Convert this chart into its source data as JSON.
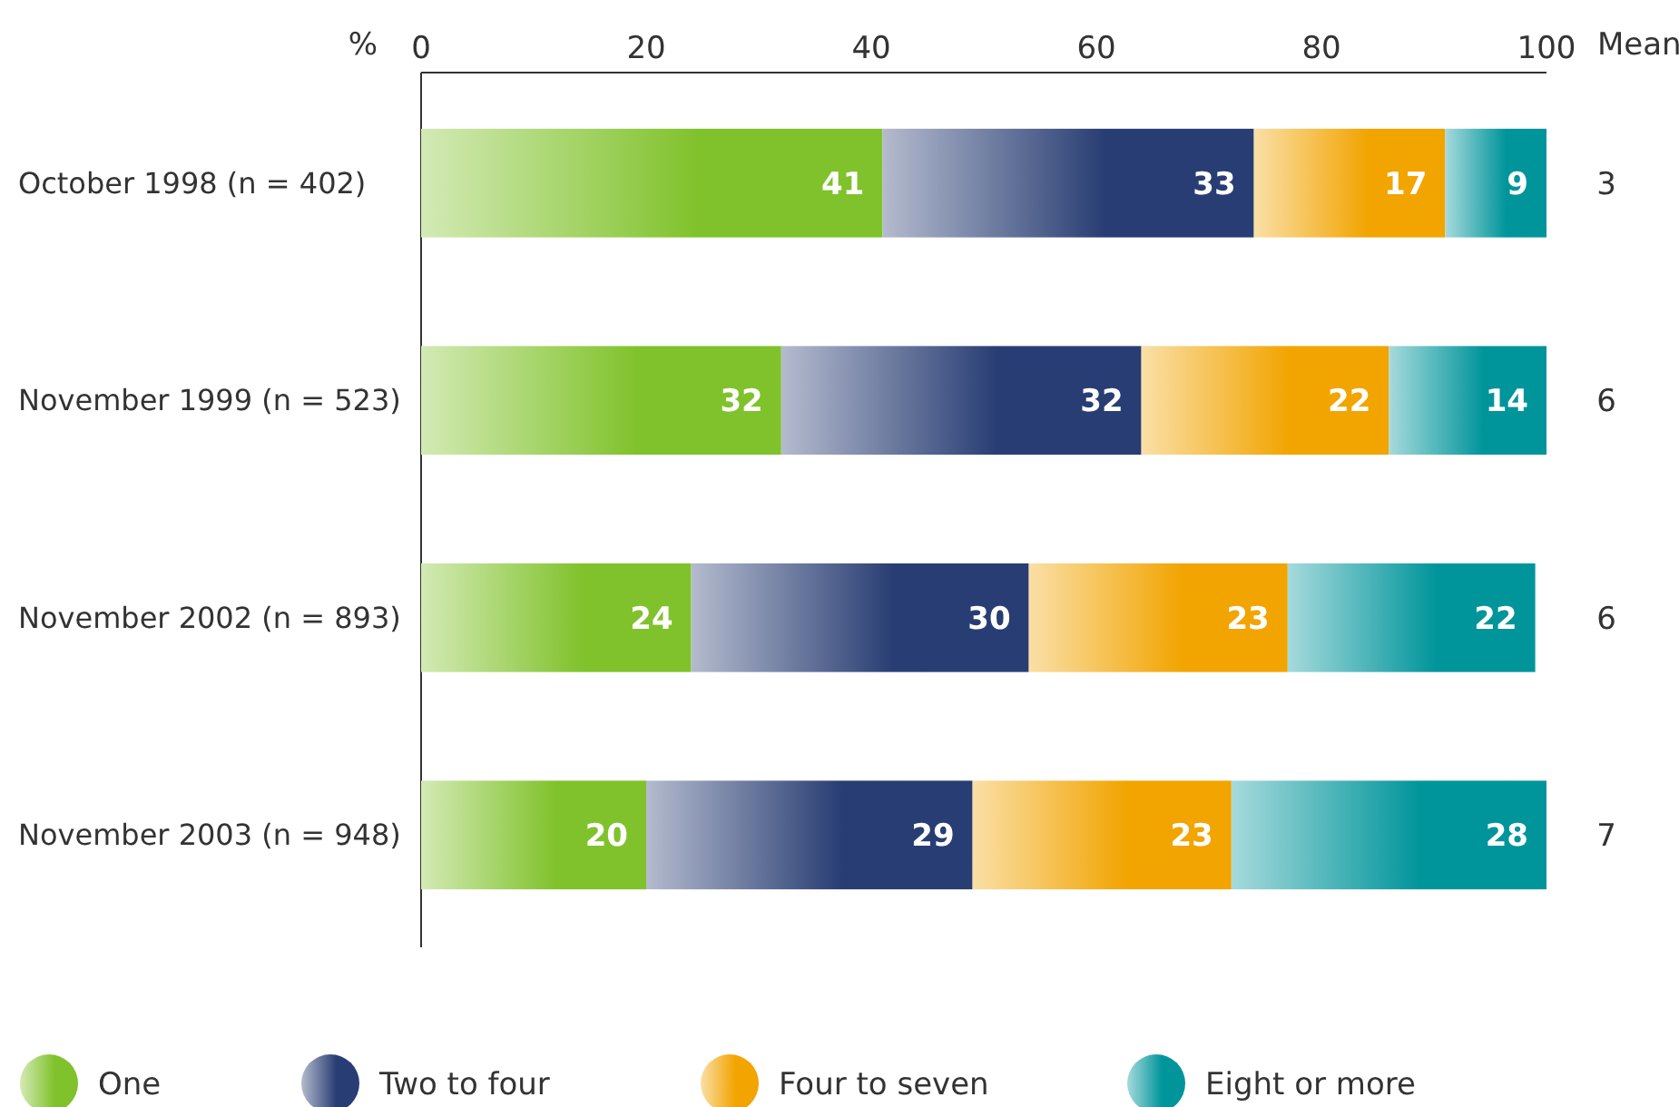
{
  "chart_data": {
    "type": "bar",
    "orientation": "horizontal",
    "stacked": true,
    "xlabel": "%",
    "categories": [
      "October 1998 (n = 402)",
      "November 1999 (n = 523)",
      "November 2002 (n = 893)",
      "November 2003 (n = 948)"
    ],
    "series": [
      {
        "name": "One",
        "color": "#80c22b",
        "values": [
          41,
          32,
          24,
          20
        ]
      },
      {
        "name": "Two to four",
        "color": "#283d73",
        "values": [
          33,
          32,
          30,
          29
        ]
      },
      {
        "name": "Four to seven",
        "color": "#f2a400",
        "values": [
          17,
          22,
          23,
          23
        ]
      },
      {
        "name": "Eight or more",
        "color": "#00959b",
        "values": [
          9,
          14,
          22,
          28
        ]
      }
    ],
    "xlim": [
      0,
      100
    ],
    "xticks": [
      0,
      20,
      40,
      60,
      80,
      100
    ],
    "data_labels": true,
    "grid": false,
    "legend": "bottom",
    "annotations": [
      "Mean",
      "3",
      "6",
      "6",
      "7"
    ]
  }
}
